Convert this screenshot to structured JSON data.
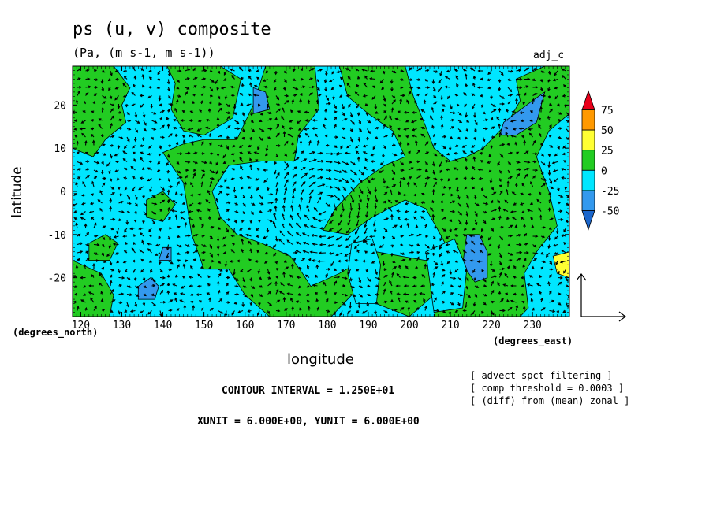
{
  "header": {
    "title": "ps (u, v) composite",
    "subtitle": "(Pa, (m s-1, m s-1))",
    "tag": "adj_c"
  },
  "axes": {
    "xlabel": "longitude",
    "ylabel": "latitude",
    "x_unit_note": "(degrees_east)",
    "y_unit_note": "(degrees_north)"
  },
  "notes": [
    "[ advect spct filtering ]",
    "[ comp threshold = 0.0003 ]",
    "[ (diff) from (mean) zonal ]"
  ],
  "info": {
    "contour_interval": "CONTOUR INTERVAL = 1.250E+01",
    "units": "XUNIT = 6.000E+00, YUNIT = 6.000E+00"
  },
  "chart_data": {
    "type": "heatmap",
    "title": "ps (u, v) composite",
    "subtitle": "(Pa, (m s-1, m s-1))",
    "xlabel": "longitude",
    "ylabel": "latitude",
    "xlim": [
      118,
      239
    ],
    "ylim": [
      -29,
      29
    ],
    "x_ticks": [
      120,
      130,
      140,
      150,
      160,
      170,
      180,
      190,
      200,
      210,
      220,
      230
    ],
    "y_ticks": [
      -20,
      -10,
      0,
      10,
      20
    ],
    "contour_interval": 12.5,
    "colorbar": {
      "levels": [
        75,
        50,
        25,
        0,
        -25,
        -50
      ],
      "colors": [
        "#e8001a",
        "#ff9900",
        "#ffff33",
        "#22cc22",
        "#00e6ff",
        "#3399ee",
        "#1a66cc"
      ]
    },
    "regions": [
      {
        "fill": "#00e6ff",
        "polygon": [
          [
            118,
            29
          ],
          [
            239,
            29
          ],
          [
            239,
            -29
          ],
          [
            118,
            -29
          ]
        ]
      },
      {
        "fill": "#22cc22",
        "polygon": [
          [
            118,
            29
          ],
          [
            128,
            29
          ],
          [
            132,
            24
          ],
          [
            130,
            20
          ],
          [
            131,
            16
          ],
          [
            126,
            12
          ],
          [
            123,
            8
          ],
          [
            118,
            10
          ]
        ]
      },
      {
        "fill": "#22cc22",
        "polygon": [
          [
            141,
            29
          ],
          [
            154,
            29
          ],
          [
            159,
            26
          ],
          [
            157,
            17
          ],
          [
            150,
            13
          ],
          [
            145,
            14
          ],
          [
            142,
            19
          ],
          [
            143,
            25
          ]
        ]
      },
      {
        "fill": "#22cc22",
        "polygon": [
          [
            165,
            29
          ],
          [
            177,
            29
          ],
          [
            178,
            19
          ],
          [
            173,
            13
          ],
          [
            172,
            7
          ],
          [
            164,
            7
          ],
          [
            156,
            6
          ],
          [
            152,
            0
          ],
          [
            154,
            -6
          ],
          [
            158,
            -10
          ],
          [
            164,
            -12
          ],
          [
            171,
            -15
          ],
          [
            174,
            -19
          ],
          [
            176,
            -22
          ],
          [
            183,
            -19
          ],
          [
            192,
            -14
          ],
          [
            204,
            -16
          ],
          [
            208,
            -19
          ],
          [
            206,
            -24
          ],
          [
            200,
            -29
          ],
          [
            192,
            -26
          ],
          [
            186,
            -24
          ],
          [
            181,
            -29
          ],
          [
            166,
            -29
          ],
          [
            160,
            -24
          ],
          [
            156,
            -18
          ],
          [
            150,
            -18
          ],
          [
            147,
            -10
          ],
          [
            145,
            2
          ],
          [
            140,
            9
          ],
          [
            145,
            11
          ],
          [
            150,
            12
          ],
          [
            158,
            12
          ],
          [
            162,
            20
          ]
        ]
      },
      {
        "fill": "#22cc22",
        "polygon": [
          [
            183,
            29
          ],
          [
            199,
            29
          ],
          [
            201,
            22
          ],
          [
            204,
            15
          ],
          [
            206,
            10
          ],
          [
            210,
            7
          ],
          [
            214,
            8
          ],
          [
            218,
            10
          ],
          [
            224,
            16
          ],
          [
            227,
            21
          ],
          [
            226,
            26
          ],
          [
            233,
            29
          ],
          [
            239,
            29
          ],
          [
            239,
            18
          ],
          [
            234,
            14
          ],
          [
            231,
            8
          ],
          [
            234,
            0
          ],
          [
            236,
            -8
          ],
          [
            231,
            -14
          ],
          [
            228,
            -19
          ],
          [
            229,
            -27
          ],
          [
            227,
            -29
          ],
          [
            206,
            -29
          ],
          [
            208,
            -22
          ],
          [
            211,
            -16
          ],
          [
            207,
            -9
          ],
          [
            204,
            -4
          ],
          [
            199,
            -2
          ],
          [
            191,
            -6
          ],
          [
            185,
            -10
          ],
          [
            179,
            -9
          ],
          [
            182,
            -4
          ],
          [
            188,
            2
          ],
          [
            194,
            6
          ],
          [
            199,
            8
          ],
          [
            196,
            14
          ],
          [
            190,
            18
          ],
          [
            185,
            22
          ]
        ]
      },
      {
        "fill": "#22cc22",
        "polygon": [
          [
            118,
            -16
          ],
          [
            125,
            -19
          ],
          [
            128,
            -24
          ],
          [
            127,
            -29
          ],
          [
            118,
            -29
          ]
        ]
      },
      {
        "fill": "#22cc22",
        "polygon": [
          [
            122,
            -12
          ],
          [
            126,
            -10
          ],
          [
            129,
            -12
          ],
          [
            127,
            -16
          ],
          [
            122,
            -16
          ]
        ]
      },
      {
        "fill": "#22cc22",
        "polygon": [
          [
            136,
            -6
          ],
          [
            140,
            -7
          ],
          [
            143,
            -3
          ],
          [
            140,
            0
          ],
          [
            136,
            -2
          ]
        ]
      },
      {
        "fill": "#3399ee",
        "polygon": [
          [
            162,
            24
          ],
          [
            165,
            23
          ],
          [
            166,
            19
          ],
          [
            162,
            18
          ]
        ]
      },
      {
        "fill": "#3399ee",
        "polygon": [
          [
            223,
            16
          ],
          [
            230,
            21
          ],
          [
            233,
            23
          ],
          [
            231,
            16
          ],
          [
            226,
            13
          ],
          [
            222,
            13
          ]
        ]
      },
      {
        "fill": "#3399ee",
        "polygon": [
          [
            214,
            -10
          ],
          [
            217,
            -10
          ],
          [
            219,
            -14
          ],
          [
            219,
            -20
          ],
          [
            216,
            -21
          ],
          [
            213,
            -17
          ]
        ]
      },
      {
        "fill": "#3399ee",
        "polygon": [
          [
            137,
            -20
          ],
          [
            139,
            -22
          ],
          [
            138,
            -25
          ],
          [
            134,
            -25
          ],
          [
            134,
            -22
          ]
        ]
      },
      {
        "fill": "#3399ee",
        "polygon": [
          [
            140,
            -13
          ],
          [
            142,
            -13
          ],
          [
            142,
            -16
          ],
          [
            139,
            -16
          ]
        ]
      },
      {
        "fill": "#ffff33",
        "polygon": [
          [
            235,
            -15
          ],
          [
            239,
            -14
          ],
          [
            239,
            -20
          ],
          [
            236,
            -19
          ]
        ]
      },
      {
        "fill": "#00e6ff",
        "polygon": [
          [
            186,
            -12
          ],
          [
            191,
            -11
          ],
          [
            193,
            -17
          ],
          [
            192,
            -26
          ],
          [
            187,
            -26
          ],
          [
            185,
            -19
          ]
        ]
      },
      {
        "fill": "#00e6ff",
        "polygon": [
          [
            204,
            -14
          ],
          [
            211,
            -11
          ],
          [
            214,
            -18
          ],
          [
            213,
            -27
          ],
          [
            206,
            -28
          ]
        ]
      }
    ]
  }
}
